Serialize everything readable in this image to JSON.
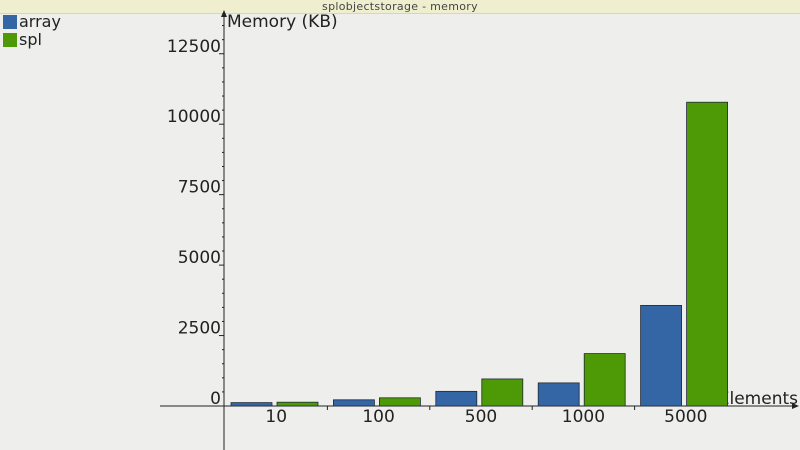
{
  "window": {
    "title": "splobjectstorage - memory"
  },
  "colors": {
    "background": "#eeeeec",
    "titlebar": "#efefcf",
    "axis": "#222222"
  },
  "chart_data": {
    "type": "bar",
    "title": "",
    "ylabel": "Memory (KB)",
    "xlabel": "Elements",
    "categories": [
      "10",
      "100",
      "500",
      "1000",
      "5000"
    ],
    "series": [
      {
        "name": "array",
        "color": "#3465a4",
        "values": [
          120,
          220,
          520,
          820,
          3570
        ]
      },
      {
        "name": "spl",
        "color": "#4e9a06",
        "values": [
          135,
          290,
          960,
          1860,
          10780
        ]
      }
    ],
    "ylim": [
      0,
      14000
    ],
    "yticks": [
      0,
      2500,
      5000,
      7500,
      10000,
      12500
    ],
    "ytick_labels": [
      "0",
      "2500",
      "5000",
      "7500",
      "10000",
      "12500"
    ],
    "grid": false,
    "legend_position": "top-left"
  }
}
